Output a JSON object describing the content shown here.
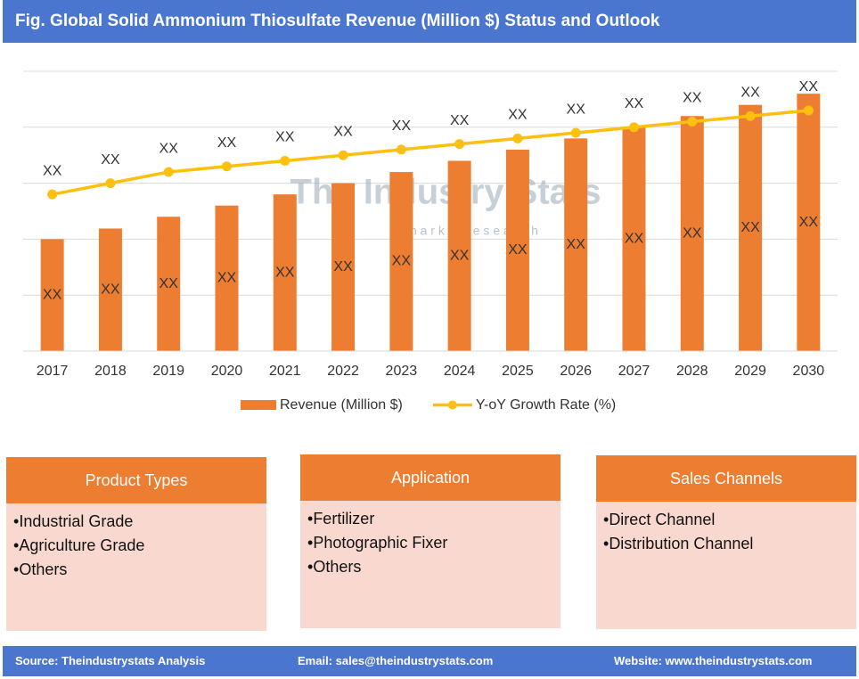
{
  "chart_data": {
    "type": "bar_line",
    "title": "Fig. Global Solid Ammonium Thiosulfate  Revenue (Million $) Status and Outlook",
    "categories": [
      "2017",
      "2018",
      "2019",
      "2020",
      "2021",
      "2022",
      "2023",
      "2024",
      "2025",
      "2026",
      "2027",
      "2028",
      "2029",
      "2030"
    ],
    "series": [
      {
        "name": "Revenue (Million $)",
        "color": "#ed7d31",
        "kind": "bar",
        "values": [
          2.0,
          2.19,
          2.4,
          2.6,
          2.8,
          3.0,
          3.2,
          3.4,
          3.6,
          3.8,
          4.0,
          4.2,
          4.4,
          4.6
        ],
        "value_labels": [
          "XX",
          "XX",
          "XX",
          "XX",
          "XX",
          "XX",
          "XX",
          "XX",
          "XX",
          "XX",
          "XX",
          "XX",
          "XX",
          "XX"
        ]
      },
      {
        "name": "Y-oY Growth Rate (%)",
        "color": "#fdbf10",
        "kind": "line",
        "values": [
          2.8,
          3.0,
          3.2,
          3.3,
          3.4,
          3.5,
          3.6,
          3.7,
          3.8,
          3.9,
          4.0,
          4.1,
          4.2,
          4.3
        ],
        "value_labels": [
          "XX",
          "XX",
          "XX",
          "XX",
          "XX",
          "XX",
          "XX",
          "XX",
          "XX",
          "XX",
          "XX",
          "XX",
          "XX",
          "XX"
        ]
      }
    ],
    "ylim": [
      0,
      5
    ]
  },
  "watermark": {
    "name": "The Industry Stats",
    "tagline": "m a r k e t   r e s e a r c h"
  },
  "panels": [
    {
      "title": "Product Types",
      "items": [
        "Industrial Grade",
        "Agriculture Grade",
        "Others"
      ]
    },
    {
      "title": "Application",
      "items": [
        "Fertilizer",
        "Photographic Fixer",
        "Others"
      ]
    },
    {
      "title": "Sales Channels",
      "items": [
        "Direct Channel",
        "Distribution Channel"
      ]
    }
  ],
  "footer": {
    "source": "Source: Theindustrystats Analysis",
    "email": "Email: sales@theindustrystats.com",
    "website": "Website: www.theindustrystats.com"
  }
}
